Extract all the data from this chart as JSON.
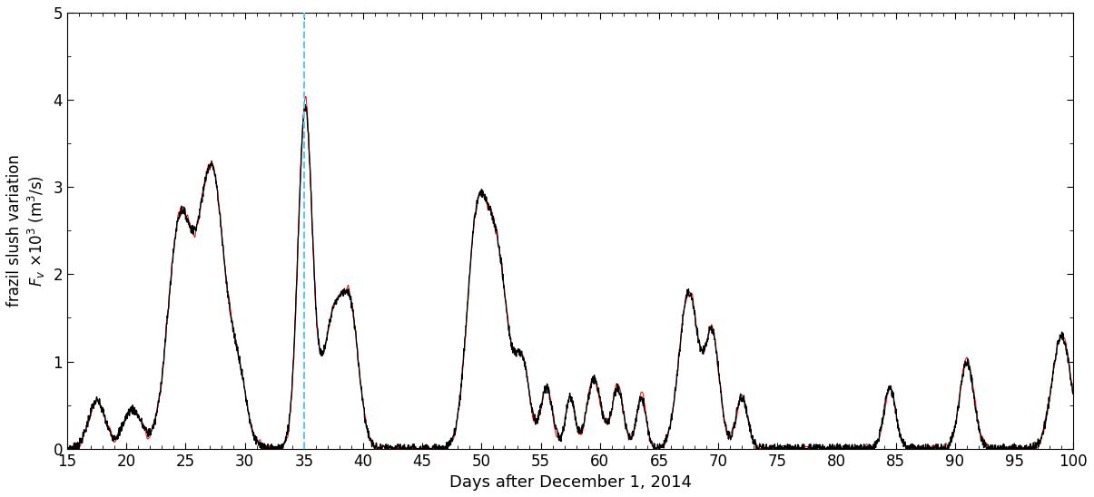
{
  "xlabel": "Days after December 1, 2014",
  "ylabel_line1": "frazil slush variation",
  "ylabel_line2": "$F_v$ ×10$^3$ (m$^3$/s)",
  "xlim": [
    15,
    100
  ],
  "ylim": [
    0,
    5
  ],
  "xticks": [
    15,
    20,
    25,
    30,
    35,
    40,
    45,
    50,
    55,
    60,
    65,
    70,
    75,
    80,
    85,
    90,
    95,
    100
  ],
  "yticks": [
    0,
    1,
    2,
    3,
    4,
    5
  ],
  "dashed_line_x": 35,
  "dashed_line_color": "#5bc8f5",
  "red_line_color": "#ff0000",
  "black_line_color": "#000000",
  "background_color": "#ffffff",
  "figsize": [
    12.05,
    5.48
  ],
  "dpi": 100
}
